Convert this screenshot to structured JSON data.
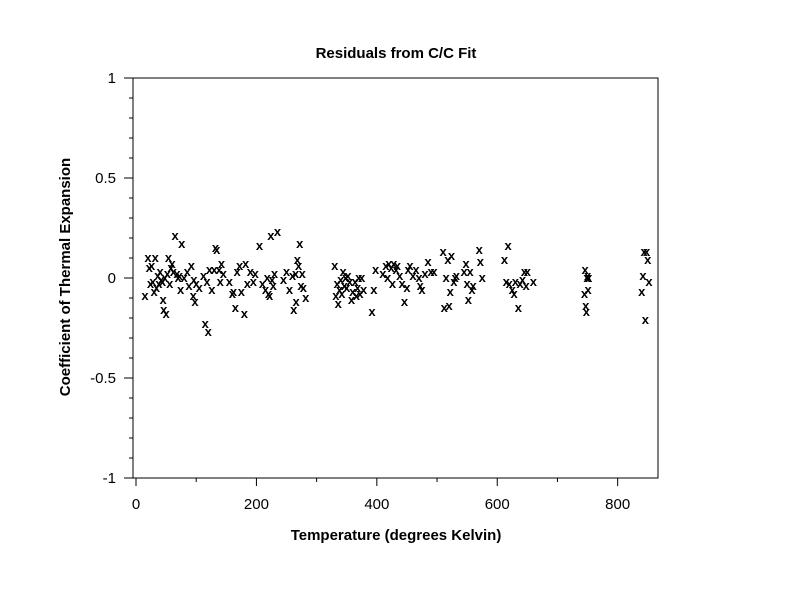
{
  "chart_data": {
    "type": "scatter",
    "title": "Residuals from C/C Fit",
    "xlabel": "Temperature (degrees Kelvin)",
    "ylabel": "Coefficient of Thermal Expansion",
    "xlim": [
      -5,
      867
    ],
    "ylim": [
      -1,
      1
    ],
    "xticks": [
      0,
      200,
      400,
      600,
      800
    ],
    "xtick_labels": [
      "0",
      "200",
      "400",
      "600",
      "800"
    ],
    "yticks": [
      1,
      0.5,
      0,
      -0.5,
      -1
    ],
    "ytick_labels": [
      "1",
      "0.5",
      "0",
      "-0.5",
      "-1"
    ],
    "marker": "x",
    "grid": false,
    "series": [
      {
        "points": [
          [
            15,
            -0.09
          ],
          [
            20,
            0.1
          ],
          [
            22,
            0.05
          ],
          [
            24,
            -0.03
          ],
          [
            26,
            0.06
          ],
          [
            28,
            -0.02
          ],
          [
            30,
            -0.07
          ],
          [
            32,
            0.1
          ],
          [
            34,
            -0.05
          ],
          [
            36,
            0.01
          ],
          [
            38,
            -0.03
          ],
          [
            40,
            0.03
          ],
          [
            42,
            -0.01
          ],
          [
            44,
            -0.02
          ],
          [
            45,
            -0.11
          ],
          [
            46,
            -0.16
          ],
          [
            48,
            0.0
          ],
          [
            50,
            -0.18
          ],
          [
            52,
            0.02
          ],
          [
            54,
            0.1
          ],
          [
            56,
            -0.03
          ],
          [
            58,
            0.05
          ],
          [
            60,
            0.07
          ],
          [
            62,
            0.03
          ],
          [
            65,
            0.21
          ],
          [
            68,
            0.02
          ],
          [
            70,
            0.0
          ],
          [
            72,
            0.01
          ],
          [
            74,
            -0.06
          ],
          [
            76,
            0.17
          ],
          [
            80,
            0.0
          ],
          [
            85,
            0.03
          ],
          [
            88,
            -0.04
          ],
          [
            92,
            0.06
          ],
          [
            95,
            -0.09
          ],
          [
            96,
            -0.01
          ],
          [
            98,
            -0.12
          ],
          [
            100,
            -0.03
          ],
          [
            105,
            -0.05
          ],
          [
            112,
            0.01
          ],
          [
            115,
            -0.23
          ],
          [
            118,
            -0.02
          ],
          [
            120,
            -0.27
          ],
          [
            122,
            0.04
          ],
          [
            126,
            -0.06
          ],
          [
            130,
            0.04
          ],
          [
            132,
            0.15
          ],
          [
            134,
            0.14
          ],
          [
            138,
            0.04
          ],
          [
            140,
            -0.02
          ],
          [
            142,
            0.07
          ],
          [
            145,
            0.02
          ],
          [
            155,
            -0.02
          ],
          [
            160,
            -0.08
          ],
          [
            162,
            -0.07
          ],
          [
            165,
            -0.15
          ],
          [
            168,
            0.03
          ],
          [
            172,
            0.06
          ],
          [
            175,
            -0.07
          ],
          [
            180,
            -0.18
          ],
          [
            182,
            0.07
          ],
          [
            185,
            -0.03
          ],
          [
            190,
            0.03
          ],
          [
            195,
            -0.02
          ],
          [
            198,
            0.02
          ],
          [
            205,
            0.16
          ],
          [
            210,
            -0.03
          ],
          [
            215,
            -0.06
          ],
          [
            218,
            0.0
          ],
          [
            220,
            -0.08
          ],
          [
            222,
            -0.09
          ],
          [
            224,
            0.21
          ],
          [
            226,
            -0.01
          ],
          [
            228,
            -0.04
          ],
          [
            230,
            0.02
          ],
          [
            235,
            0.23
          ],
          [
            245,
            -0.01
          ],
          [
            250,
            0.03
          ],
          [
            255,
            -0.06
          ],
          [
            260,
            0.01
          ],
          [
            262,
            -0.16
          ],
          [
            265,
            0.02
          ],
          [
            266,
            -0.12
          ],
          [
            268,
            0.09
          ],
          [
            270,
            0.06
          ],
          [
            272,
            0.17
          ],
          [
            274,
            -0.04
          ],
          [
            276,
            0.02
          ],
          [
            278,
            -0.05
          ],
          [
            282,
            -0.1
          ],
          [
            330,
            0.06
          ],
          [
            332,
            -0.09
          ],
          [
            334,
            -0.03
          ],
          [
            336,
            -0.13
          ],
          [
            338,
            -0.06
          ],
          [
            340,
            -0.01
          ],
          [
            342,
            -0.08
          ],
          [
            344,
            0.03
          ],
          [
            346,
            -0.04
          ],
          [
            348,
            0.0
          ],
          [
            350,
            -0.05
          ],
          [
            352,
            0.01
          ],
          [
            355,
            -0.02
          ],
          [
            358,
            -0.11
          ],
          [
            360,
            -0.07
          ],
          [
            364,
            -0.02
          ],
          [
            366,
            -0.09
          ],
          [
            368,
            -0.05
          ],
          [
            370,
            0.0
          ],
          [
            372,
            -0.08
          ],
          [
            375,
            0.0
          ],
          [
            378,
            -0.06
          ],
          [
            392,
            -0.17
          ],
          [
            395,
            -0.06
          ],
          [
            398,
            0.04
          ],
          [
            410,
            0.02
          ],
          [
            415,
            0.06
          ],
          [
            418,
            0.0
          ],
          [
            420,
            0.07
          ],
          [
            424,
            0.05
          ],
          [
            426,
            -0.03
          ],
          [
            428,
            0.07
          ],
          [
            432,
            0.04
          ],
          [
            434,
            0.06
          ],
          [
            438,
            0.01
          ],
          [
            442,
            -0.03
          ],
          [
            446,
            -0.12
          ],
          [
            450,
            -0.05
          ],
          [
            452,
            0.04
          ],
          [
            455,
            0.06
          ],
          [
            460,
            0.01
          ],
          [
            465,
            0.04
          ],
          [
            470,
            0.0
          ],
          [
            472,
            -0.04
          ],
          [
            475,
            -0.06
          ],
          [
            480,
            0.02
          ],
          [
            485,
            0.08
          ],
          [
            490,
            0.03
          ],
          [
            495,
            0.03
          ],
          [
            510,
            0.13
          ],
          [
            512,
            -0.15
          ],
          [
            515,
            0.0
          ],
          [
            518,
            0.09
          ],
          [
            520,
            -0.14
          ],
          [
            522,
            -0.07
          ],
          [
            524,
            0.11
          ],
          [
            528,
            -0.02
          ],
          [
            530,
            0.0
          ],
          [
            532,
            0.01
          ],
          [
            545,
            0.03
          ],
          [
            548,
            0.07
          ],
          [
            550,
            -0.03
          ],
          [
            552,
            -0.11
          ],
          [
            555,
            0.03
          ],
          [
            558,
            -0.06
          ],
          [
            560,
            -0.04
          ],
          [
            570,
            0.14
          ],
          [
            572,
            0.08
          ],
          [
            575,
            0.0
          ],
          [
            612,
            0.09
          ],
          [
            615,
            -0.02
          ],
          [
            618,
            0.16
          ],
          [
            620,
            -0.03
          ],
          [
            625,
            -0.06
          ],
          [
            628,
            -0.08
          ],
          [
            630,
            -0.02
          ],
          [
            635,
            -0.15
          ],
          [
            638,
            -0.03
          ],
          [
            642,
            -0.01
          ],
          [
            645,
            0.03
          ],
          [
            648,
            -0.04
          ],
          [
            650,
            0.03
          ],
          [
            660,
            -0.02
          ],
          [
            745,
            -0.08
          ],
          [
            746,
            0.04
          ],
          [
            747,
            -0.14
          ],
          [
            748,
            -0.17
          ],
          [
            749,
            0.0
          ],
          [
            750,
            0.01
          ],
          [
            751,
            -0.06
          ],
          [
            752,
            0.0
          ],
          [
            840,
            -0.07
          ],
          [
            842,
            0.01
          ],
          [
            844,
            0.13
          ],
          [
            846,
            -0.21
          ],
          [
            848,
            0.13
          ],
          [
            850,
            0.09
          ],
          [
            852,
            -0.02
          ]
        ]
      }
    ]
  }
}
